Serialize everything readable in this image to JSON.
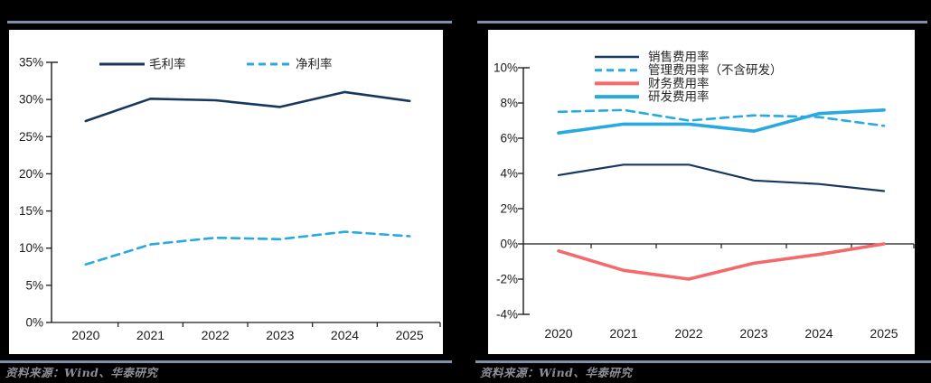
{
  "page": {
    "source_note_left": "资料来源：Wind、华泰研究",
    "source_note_right": "资料来源：Wind、华泰研究"
  },
  "colors": {
    "navy": "#17375E",
    "cyan": "#29A9E1",
    "red": "#F4696B",
    "rule_blue": "#7E92AC",
    "axis": "#1A1A1A",
    "source_text": "#8C8F95",
    "panel_bg": "#FFFFFF",
    "page_bg": "#000000"
  },
  "chart_data": [
    {
      "type": "line",
      "title": "",
      "categories": [
        "2020",
        "2021",
        "2022",
        "2023",
        "2024",
        "2025"
      ],
      "series": [
        {
          "name": "毛利率",
          "values": [
            27.1,
            30.1,
            29.9,
            29.0,
            31.0,
            29.8
          ],
          "color": "#17375E",
          "style": "solid",
          "width": 2.6
        },
        {
          "name": "净利率",
          "values": [
            7.8,
            10.5,
            11.4,
            11.2,
            12.2,
            11.6
          ],
          "color": "#29A9E1",
          "style": "dashed",
          "width": 2.6
        }
      ],
      "ylim": [
        0,
        35
      ],
      "ytick_step": 5,
      "ytick_labels": [
        "35%",
        "30%",
        "25%",
        "20%",
        "15%",
        "10%",
        "5%",
        "0%"
      ],
      "xlabel": "",
      "ylabel": "",
      "grid": false,
      "legend_position": "top-horizontal"
    },
    {
      "type": "line",
      "title": "",
      "categories": [
        "2020",
        "2021",
        "2022",
        "2023",
        "2024",
        "2025"
      ],
      "series": [
        {
          "name": "销售费用率",
          "values": [
            3.9,
            4.5,
            4.5,
            3.6,
            3.4,
            3.0
          ],
          "color": "#17375E",
          "style": "solid",
          "width": 2.2
        },
        {
          "name": "管理费用率（不含研发）",
          "values": [
            7.5,
            7.6,
            7.0,
            7.3,
            7.2,
            6.7
          ],
          "color": "#29A9E1",
          "style": "dashed",
          "width": 2.6
        },
        {
          "name": "财务费用率",
          "values": [
            -0.4,
            -1.5,
            -2.0,
            -1.1,
            -0.6,
            0.0
          ],
          "color": "#F4696B",
          "style": "solid",
          "width": 3.6
        },
        {
          "name": "研发费用率",
          "values": [
            6.3,
            6.8,
            6.8,
            6.4,
            7.4,
            7.6
          ],
          "color": "#29A9E1",
          "style": "solid",
          "width": 3.6
        }
      ],
      "ylim": [
        -4,
        10
      ],
      "ytick_step": 2,
      "ytick_labels": [
        "10%",
        "8%",
        "6%",
        "4%",
        "2%",
        "0%",
        "-2%",
        "-4%"
      ],
      "xlabel": "",
      "ylabel": "",
      "grid": false,
      "legend_position": "top-left-vertical"
    }
  ]
}
